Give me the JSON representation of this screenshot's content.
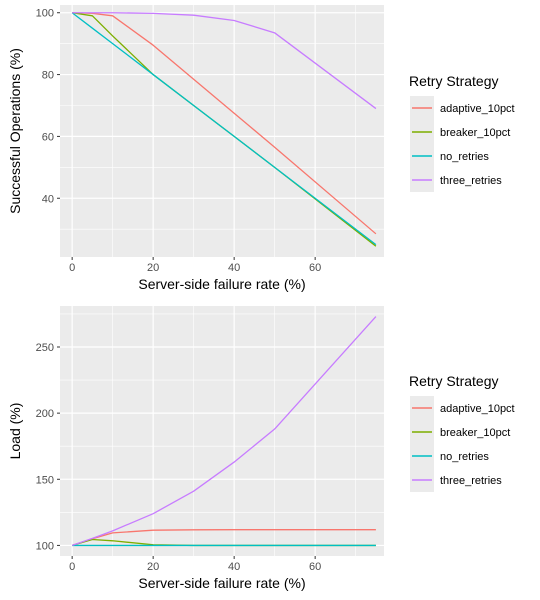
{
  "chart_data": [
    {
      "type": "line",
      "xlabel": "Server-side failure rate (%)",
      "ylabel": "Successful Operations (%)",
      "xlim": [
        -3,
        77
      ],
      "ylim": [
        21,
        102.5
      ],
      "xticks": [
        0,
        20,
        40,
        60
      ],
      "yticks": [
        40,
        60,
        80,
        100
      ],
      "grid": true,
      "legend": {
        "title": "Retry Strategy",
        "position": "right",
        "entries": [
          "adaptive_10pct",
          "breaker_10pct",
          "no_retries",
          "three_retries"
        ]
      },
      "series": [
        {
          "name": "adaptive_10pct",
          "color": "#F8766D",
          "x": [
            0,
            5,
            10,
            20,
            30,
            40,
            50,
            75
          ],
          "y": [
            100,
            99.8,
            99,
            89.5,
            78.5,
            67.5,
            56.5,
            28.5
          ]
        },
        {
          "name": "breaker_10pct",
          "color": "#7CAE00",
          "x": [
            0,
            5,
            10,
            20,
            30,
            40,
            50,
            75
          ],
          "y": [
            100,
            99,
            92.5,
            80,
            70,
            60,
            50,
            24.5
          ]
        },
        {
          "name": "no_retries",
          "color": "#00BFC4",
          "x": [
            0,
            5,
            10,
            20,
            30,
            40,
            50,
            75
          ],
          "y": [
            100,
            95,
            90,
            80,
            70,
            60,
            50,
            25
          ]
        },
        {
          "name": "three_retries",
          "color": "#C77CFF",
          "x": [
            0,
            5,
            10,
            20,
            30,
            40,
            50,
            75
          ],
          "y": [
            100,
            100,
            100,
            99.8,
            99.2,
            97.5,
            93.5,
            69
          ]
        }
      ]
    },
    {
      "type": "line",
      "xlabel": "Server-side failure rate (%)",
      "ylabel": "Load (%)",
      "xlim": [
        -3,
        77
      ],
      "ylim": [
        92,
        281
      ],
      "xticks": [
        0,
        20,
        40,
        60
      ],
      "yticks": [
        100,
        150,
        200,
        250
      ],
      "grid": true,
      "legend": {
        "title": "Retry Strategy",
        "position": "right",
        "entries": [
          "adaptive_10pct",
          "breaker_10pct",
          "no_retries",
          "three_retries"
        ]
      },
      "series": [
        {
          "name": "adaptive_10pct",
          "color": "#F8766D",
          "x": [
            0,
            5,
            10,
            20,
            30,
            40,
            50,
            75
          ],
          "y": [
            100,
            105,
            109.5,
            111.5,
            111.8,
            111.9,
            111.9,
            111.9
          ]
        },
        {
          "name": "breaker_10pct",
          "color": "#7CAE00",
          "x": [
            0,
            5,
            10,
            20,
            30,
            40,
            50,
            75
          ],
          "y": [
            100,
            104.5,
            103.5,
            100.5,
            100,
            100,
            100,
            100
          ]
        },
        {
          "name": "no_retries",
          "color": "#00BFC4",
          "x": [
            0,
            5,
            10,
            20,
            30,
            40,
            50,
            75
          ],
          "y": [
            100,
            100,
            100,
            100,
            100,
            100,
            100,
            100
          ]
        },
        {
          "name": "three_retries",
          "color": "#C77CFF",
          "x": [
            0,
            5,
            10,
            20,
            30,
            40,
            50,
            75
          ],
          "y": [
            100,
            105.3,
            111,
            124,
            141,
            163,
            188,
            273
          ]
        }
      ]
    }
  ]
}
